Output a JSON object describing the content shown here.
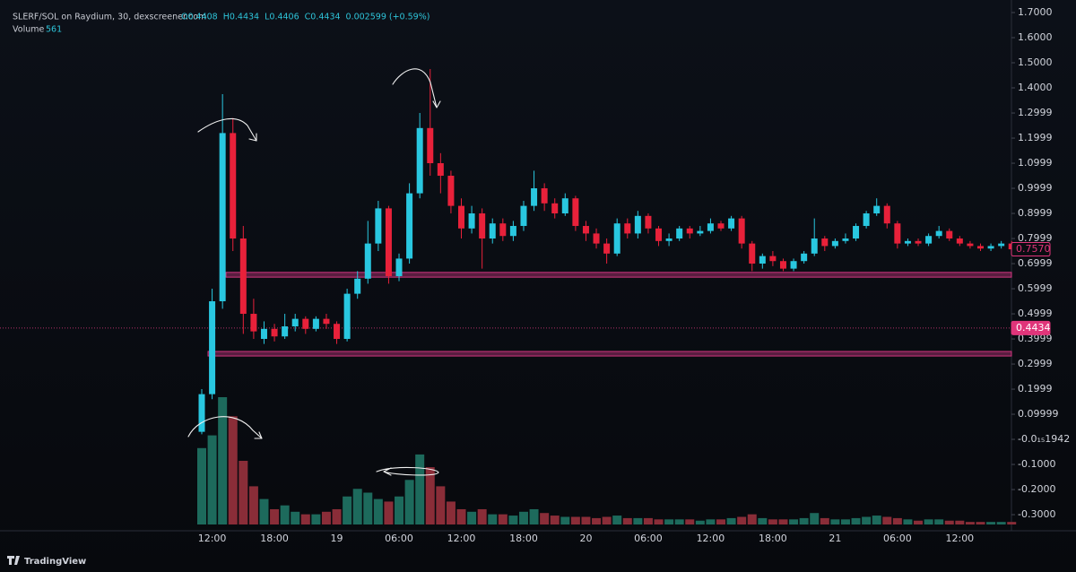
{
  "chart_data": {
    "type": "candlestick",
    "title": "SLERF/SOL on Raydium, 30, dexscreener.com",
    "ohlc_legend": [
      "O0.4408",
      "H0.4434",
      "L0.4406",
      "C0.4434",
      "0.002599 (+0.59%)"
    ],
    "volume_label": "Volume",
    "volume_value": "561",
    "brand": "TradingView",
    "categories": [
      null,
      "12:00",
      null,
      null,
      null,
      null,
      null,
      "18:00",
      null,
      null,
      null,
      null,
      null,
      "19",
      null,
      null,
      null,
      null,
      null,
      "06:00",
      null,
      null,
      null,
      null,
      null,
      "12:00",
      null,
      null,
      null,
      null,
      null,
      "18:00",
      null,
      null,
      null,
      null,
      null,
      "20",
      null,
      null,
      null,
      null,
      null,
      "06:00",
      null,
      null,
      null,
      null,
      null,
      "12:00",
      null,
      null,
      null,
      null,
      null,
      "18:00",
      null,
      null,
      null,
      null,
      null,
      "21",
      null,
      null,
      null,
      null,
      null,
      "06:00",
      null,
      null,
      null,
      null,
      null,
      "12:00",
      null,
      null,
      null,
      null,
      null
    ],
    "open": [
      0.03,
      0.18,
      0.55,
      1.22,
      0.8,
      0.5,
      0.4,
      0.44,
      0.41,
      0.45,
      0.48,
      0.44,
      0.48,
      0.46,
      0.4,
      0.58,
      0.64,
      0.78,
      0.92,
      0.65,
      0.72,
      0.98,
      1.24,
      1.1,
      1.05,
      0.93,
      0.84,
      0.9,
      0.8,
      0.86,
      0.81,
      0.85,
      0.93,
      1.0,
      0.94,
      0.9,
      0.96,
      0.85,
      0.82,
      0.78,
      0.74,
      0.86,
      0.82,
      0.89,
      0.84,
      0.79,
      0.8,
      0.84,
      0.82,
      0.83,
      0.86,
      0.84,
      0.88,
      0.78,
      0.7,
      0.73,
      0.71,
      0.68,
      0.71,
      0.74,
      0.8,
      0.77,
      0.79,
      0.8,
      0.85,
      0.9,
      0.93,
      0.86,
      0.78,
      0.79,
      0.78,
      0.81,
      0.83,
      0.8,
      0.78,
      0.77,
      0.76,
      0.77,
      0.78
    ],
    "high": [
      0.2,
      0.6,
      1.375,
      1.28,
      0.85,
      0.56,
      0.47,
      0.46,
      0.5,
      0.5,
      0.49,
      0.49,
      0.5,
      0.47,
      0.6,
      0.67,
      0.87,
      0.95,
      0.93,
      0.74,
      1.02,
      1.3,
      1.475,
      1.14,
      1.07,
      0.96,
      0.93,
      0.92,
      0.88,
      0.88,
      0.87,
      0.95,
      1.07,
      1.02,
      0.96,
      0.98,
      0.97,
      0.87,
      0.84,
      0.8,
      0.88,
      0.88,
      0.91,
      0.9,
      0.85,
      0.82,
      0.85,
      0.85,
      0.85,
      0.88,
      0.87,
      0.89,
      0.89,
      0.79,
      0.74,
      0.75,
      0.72,
      0.72,
      0.75,
      0.88,
      0.81,
      0.8,
      0.82,
      0.86,
      0.91,
      0.96,
      0.94,
      0.87,
      0.8,
      0.8,
      0.82,
      0.85,
      0.84,
      0.81,
      0.79,
      0.78,
      0.78,
      0.79,
      0.79
    ],
    "low": [
      0.02,
      0.16,
      0.52,
      0.75,
      0.42,
      0.4,
      0.38,
      0.39,
      0.4,
      0.43,
      0.42,
      0.43,
      0.44,
      0.38,
      0.39,
      0.56,
      0.62,
      0.75,
      0.62,
      0.63,
      0.7,
      0.96,
      1.05,
      0.98,
      0.9,
      0.8,
      0.82,
      0.68,
      0.78,
      0.79,
      0.79,
      0.83,
      0.91,
      0.91,
      0.88,
      0.89,
      0.83,
      0.79,
      0.76,
      0.7,
      0.73,
      0.8,
      0.8,
      0.82,
      0.77,
      0.77,
      0.79,
      0.8,
      0.81,
      0.82,
      0.83,
      0.83,
      0.76,
      0.67,
      0.68,
      0.69,
      0.67,
      0.67,
      0.7,
      0.73,
      0.75,
      0.76,
      0.78,
      0.79,
      0.84,
      0.89,
      0.84,
      0.76,
      0.77,
      0.77,
      0.77,
      0.8,
      0.79,
      0.77,
      0.76,
      0.75,
      0.75,
      0.76,
      0.75
    ],
    "close": [
      0.18,
      0.55,
      1.22,
      0.8,
      0.5,
      0.43,
      0.44,
      0.41,
      0.45,
      0.48,
      0.44,
      0.48,
      0.46,
      0.4,
      0.58,
      0.64,
      0.78,
      0.92,
      0.65,
      0.72,
      0.98,
      1.24,
      1.1,
      1.05,
      0.93,
      0.84,
      0.9,
      0.8,
      0.86,
      0.81,
      0.85,
      0.93,
      1.0,
      0.94,
      0.9,
      0.96,
      0.85,
      0.82,
      0.78,
      0.74,
      0.86,
      0.82,
      0.89,
      0.84,
      0.79,
      0.8,
      0.84,
      0.82,
      0.83,
      0.86,
      0.84,
      0.88,
      0.78,
      0.7,
      0.73,
      0.71,
      0.68,
      0.71,
      0.74,
      0.8,
      0.77,
      0.79,
      0.8,
      0.85,
      0.9,
      0.93,
      0.86,
      0.78,
      0.79,
      0.78,
      0.81,
      0.83,
      0.8,
      0.78,
      0.77,
      0.76,
      0.77,
      0.78,
      0.757
    ],
    "volume": [
      60,
      70,
      100,
      85,
      50,
      30,
      20,
      12,
      15,
      10,
      8,
      8,
      10,
      12,
      22,
      28,
      25,
      20,
      18,
      22,
      35,
      55,
      45,
      30,
      18,
      12,
      10,
      12,
      8,
      8,
      7,
      10,
      12,
      9,
      7,
      6,
      6,
      6,
      5,
      6,
      7,
      5,
      5,
      5,
      4,
      4,
      4,
      4,
      3,
      4,
      4,
      5,
      6,
      8,
      5,
      4,
      4,
      4,
      5,
      9,
      5,
      4,
      4,
      5,
      6,
      7,
      6,
      5,
      4,
      3,
      4,
      4,
      3,
      3,
      2,
      2,
      2,
      2,
      2
    ],
    "up_color": "#29c7e0",
    "down_color": "#e8213a",
    "volume_up_color": "#1d6a5c",
    "volume_down_color": "#8a2d38",
    "ylim": [
      -0.357,
      1.75
    ],
    "yticks": [
      {
        "value": 1.7,
        "label": "1.7000"
      },
      {
        "value": 1.6,
        "label": "1.6000"
      },
      {
        "value": 1.5,
        "label": "1.5000"
      },
      {
        "value": 1.4,
        "label": "1.4000"
      },
      1.2999,
      1.1999,
      1.0999,
      0.9999,
      0.8999,
      0.7999,
      0.6999,
      0.5999,
      0.4999,
      0.3999,
      0.2999,
      0.1999,
      0.09999,
      {
        "value": -1.942e-16,
        "label": "-0.0₁₅1942"
      },
      {
        "value": -0.1,
        "label": "-0.1000"
      },
      {
        "value": -0.2,
        "label": "-0.2000"
      },
      {
        "value": -0.3,
        "label": "-0.3000"
      }
    ],
    "zones": [
      {
        "from": 0.646,
        "to": 0.665
      },
      {
        "from": 0.332,
        "to": 0.35
      }
    ],
    "price_labels": [
      {
        "value": 0.757,
        "label": "0.7570",
        "style": "outline"
      },
      {
        "value": 0.4434,
        "label": "0.4434",
        "style": "filled"
      }
    ]
  }
}
